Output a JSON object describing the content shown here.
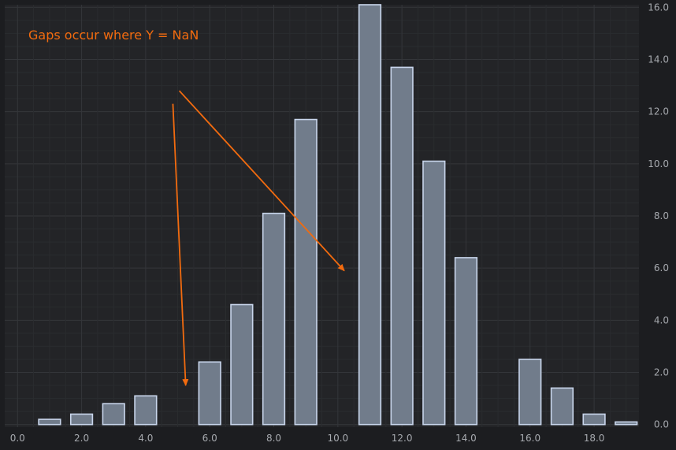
{
  "chart_data": {
    "type": "bar",
    "title": "",
    "xlabel": "",
    "ylabel": "",
    "x": [
      0,
      1,
      2,
      3,
      4,
      5,
      6,
      7,
      8,
      9,
      10,
      11,
      12,
      13,
      14,
      15,
      16,
      17,
      18,
      19
    ],
    "values": [
      null,
      0.2,
      0.4,
      0.8,
      1.1,
      null,
      2.4,
      4.6,
      8.1,
      11.7,
      null,
      16.1,
      13.7,
      10.1,
      6.4,
      null,
      2.5,
      1.4,
      0.4,
      0.1
    ],
    "xlim": [
      -0.4,
      19.4
    ],
    "ylim": [
      -0.1,
      16.1
    ],
    "x_ticks": [
      0,
      2,
      4,
      6,
      8,
      10,
      12,
      14,
      16,
      18
    ],
    "x_tick_labels": [
      "0.0",
      "2.0",
      "4.0",
      "6.0",
      "8.0",
      "10.0",
      "12.0",
      "14.0",
      "16.0",
      "18.0"
    ],
    "y_ticks": [
      0,
      2,
      4,
      6,
      8,
      10,
      12,
      14,
      16
    ],
    "y_tick_labels": [
      "0.0",
      "2.0",
      "4.0",
      "6.0",
      "8.0",
      "10.0",
      "12.0",
      "14.0",
      "16.0"
    ],
    "y_axis_position": "right",
    "grid": true,
    "colors": {
      "background": "#1c1d20",
      "plot_background": "#232427",
      "grid_major": "#34363a",
      "grid_minor": "#2a2c2f",
      "bar_fill": "#717c8b",
      "bar_stroke": "#c9d6ec",
      "axis_text": "#a6a9ae",
      "annotation": "#f26b0f"
    },
    "annotations": [
      {
        "text": "Gaps occur where Y = NaN",
        "arrows": [
          {
            "from": [
              4.85,
              12.3
            ],
            "to": [
              5.25,
              1.5
            ]
          },
          {
            "from": [
              5.05,
              12.8
            ],
            "to": [
              10.2,
              5.9
            ]
          }
        ]
      }
    ]
  }
}
